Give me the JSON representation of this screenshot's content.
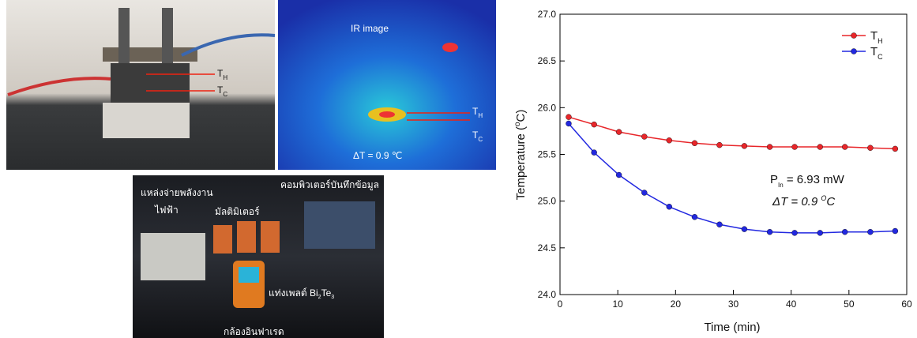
{
  "photos": {
    "setup": {
      "labels": [
        {
          "text": "T",
          "sub": "H"
        },
        {
          "text": "T",
          "sub": "C"
        }
      ]
    },
    "ir": {
      "title": "IR image",
      "labels": [
        {
          "text": "T",
          "sub": "H"
        },
        {
          "text": "T",
          "sub": "C"
        }
      ],
      "delta": "ΔT = 0.9 ℃"
    },
    "measurement": {
      "power_supply": [
        "แหล่งจ่ายพลังงาน",
        "ไฟฟ้า"
      ],
      "multimeter": "มัลติมิเตอร์",
      "computer": "คอมพิวเตอร์บันทึกข้อมูล",
      "module": [
        "แท่งเพลต์ Bi",
        "2",
        "Te",
        "3"
      ],
      "camera": "กล้องอินฟาเรด"
    }
  },
  "chart_data": {
    "type": "line",
    "x_label": "Time (min)",
    "y_label": [
      "Temperature (",
      "o",
      "C)"
    ],
    "x": [
      1.5,
      5.9,
      10.2,
      14.6,
      18.9,
      23.3,
      27.6,
      31.9,
      36.3,
      40.6,
      45.0,
      49.3,
      53.7,
      58.0
    ],
    "series": [
      {
        "name": "T",
        "name_sub": "H",
        "color": "#e8262a",
        "values": [
          25.9,
          25.82,
          25.74,
          25.69,
          25.65,
          25.62,
          25.6,
          25.59,
          25.58,
          25.58,
          25.58,
          25.58,
          25.57,
          25.56
        ]
      },
      {
        "name": "T",
        "name_sub": "C",
        "color": "#2228e0",
        "values": [
          25.83,
          25.52,
          25.28,
          25.09,
          24.94,
          24.83,
          24.75,
          24.7,
          24.67,
          24.66,
          24.66,
          24.67,
          24.67,
          24.68
        ]
      }
    ],
    "xlim": [
      0,
      60
    ],
    "xticks": [
      0,
      10,
      20,
      30,
      40,
      50,
      60
    ],
    "ylim": [
      24,
      27
    ],
    "yticks": [
      {
        "value": 24,
        "label": "24.0"
      },
      {
        "value": 24.5,
        "label": "24.5"
      },
      {
        "value": 25,
        "label": "25.0"
      },
      {
        "value": 25.5,
        "label": "25.5"
      },
      {
        "value": 26,
        "label": "26.0"
      },
      {
        "value": 26.5,
        "label": "26.5"
      },
      {
        "value": 27,
        "label": "27.0"
      }
    ],
    "legend": "upper right",
    "annotations": {
      "power": [
        "P",
        "In",
        " = 6.93 mW"
      ],
      "delta": [
        "ΔT = 0.9 ",
        "O",
        "C"
      ]
    }
  }
}
